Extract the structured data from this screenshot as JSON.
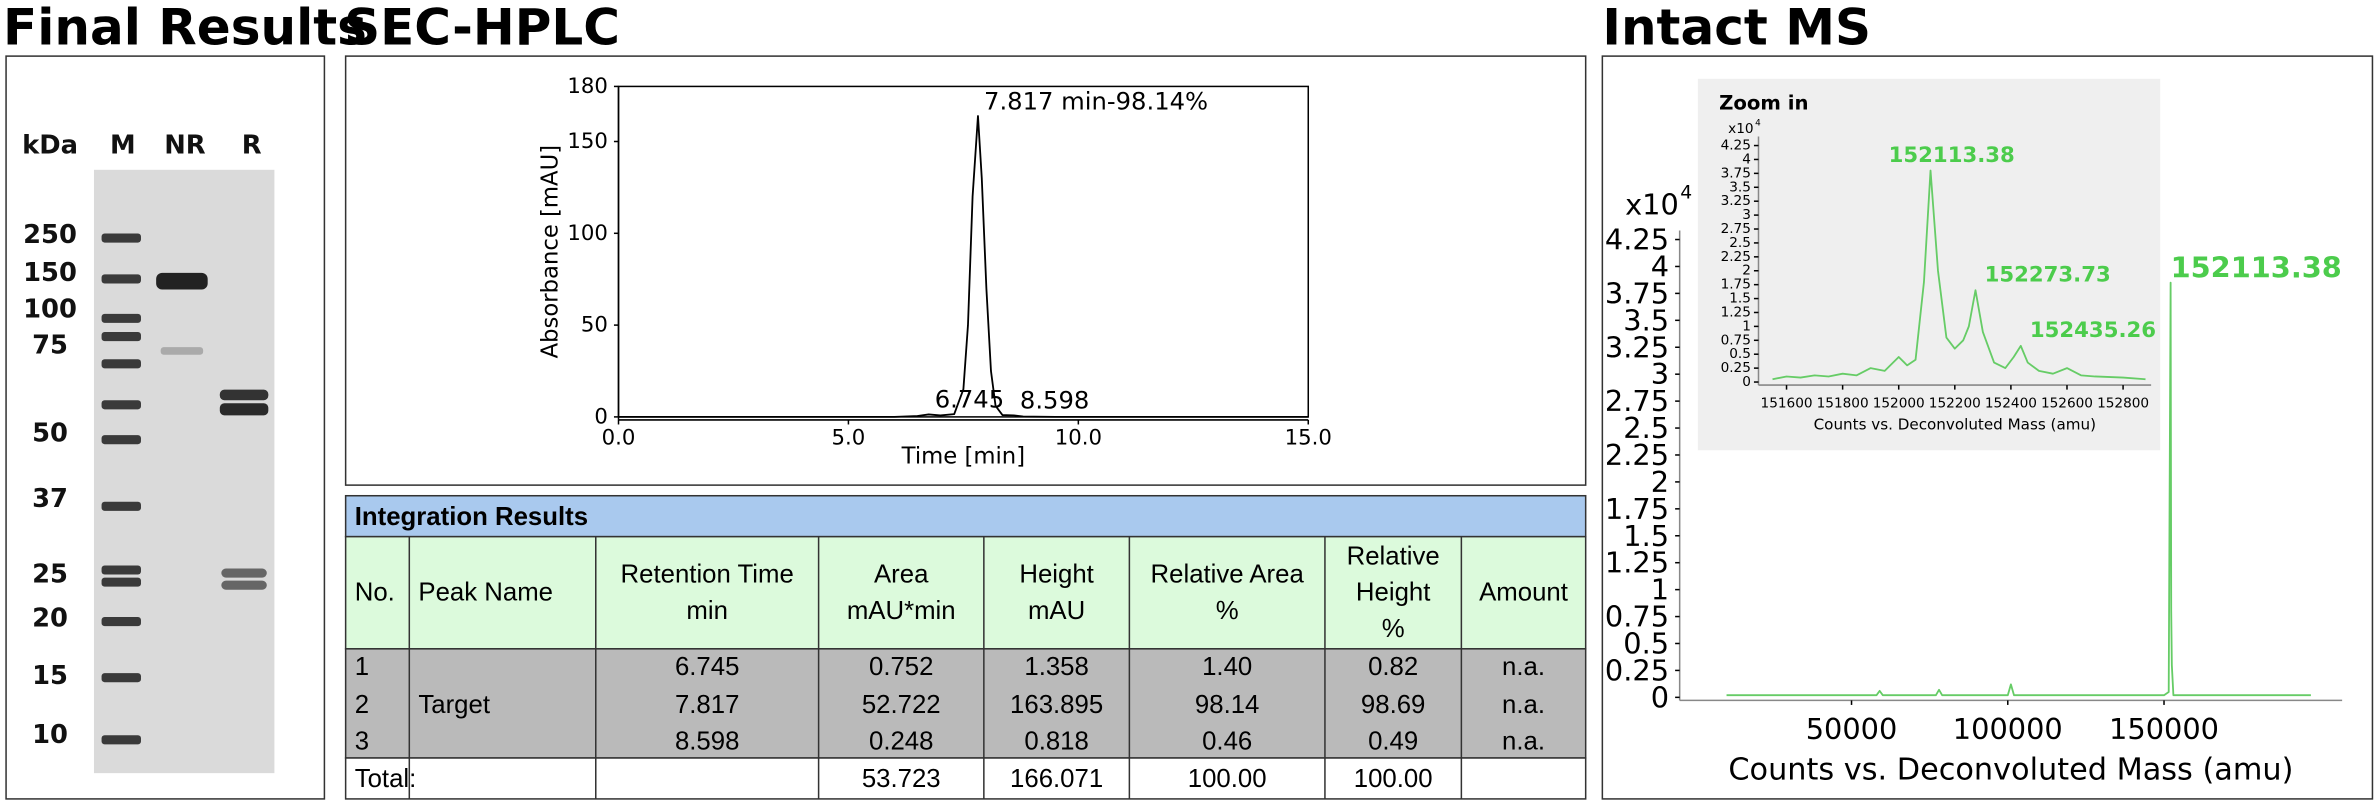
{
  "titles": {
    "gel": "Final Results",
    "sec": "SEC-HPLC",
    "ms": "Intact MS"
  },
  "gel": {
    "unit": "kDa",
    "lanes": [
      "M",
      "NR",
      "R"
    ],
    "markers": [
      250,
      150,
      100,
      75,
      50,
      37,
      25,
      20,
      15,
      10
    ]
  },
  "chart_data": [
    {
      "type": "line",
      "xlabel": "Time [min]",
      "ylabel": "Absorbance [mAU]",
      "xlim": [
        0,
        15
      ],
      "ylim": [
        0,
        180
      ],
      "xticks": [
        {
          "value": 0,
          "label": "0.0"
        },
        {
          "value": 5,
          "label": "5.0"
        },
        {
          "value": 10,
          "label": "10.0"
        },
        {
          "value": 15,
          "label": "15.0"
        }
      ],
      "yticks": [
        0,
        50,
        100,
        150,
        180
      ],
      "series": [
        {
          "color": "#000000",
          "x": [
            0,
            6.0,
            6.5,
            6.745,
            7.0,
            7.3,
            7.5,
            7.6,
            7.7,
            7.817,
            7.9,
            8.0,
            8.1,
            8.2,
            8.35,
            8.598,
            8.8,
            9.5,
            15
          ],
          "values": [
            0,
            0,
            0.5,
            1.358,
            0.8,
            1.5,
            15,
            50,
            120,
            163.895,
            130,
            70,
            25,
            6,
            1,
            0.818,
            0.2,
            0,
            0
          ]
        }
      ],
      "annotations": [
        {
          "text": "7.817 min-98.14%",
          "x": 7.817,
          "y": 163.895
        },
        {
          "text": "6.745",
          "x": 6.745,
          "y": 1.358
        },
        {
          "text": "8.598",
          "x": 8.598,
          "y": 0.818
        }
      ]
    },
    {
      "type": "line",
      "xlabel": "Counts vs. Deconvoluted Mass (amu)",
      "y_scale": {
        "base": "x10",
        "exponent": "4"
      },
      "xlim": [
        -5000,
        207000
      ],
      "ylim": [
        0,
        4.25
      ],
      "xticks": [
        50000,
        100000,
        150000
      ],
      "yticks": [
        0,
        0.25,
        0.5,
        0.75,
        1,
        1.25,
        1.5,
        1.75,
        2,
        2.25,
        2.5,
        2.75,
        3,
        3.25,
        3.5,
        3.75,
        4,
        4.25
      ],
      "series": [
        {
          "color": "#66cc66",
          "x": [
            10000,
            58000,
            59000,
            60000,
            77000,
            78000,
            79000,
            100000,
            101000,
            102000,
            150000,
            151500,
            152113.38,
            152300,
            152500,
            153000,
            197000
          ],
          "values": [
            0.02,
            0.02,
            0.06,
            0.02,
            0.02,
            0.07,
            0.02,
            0.02,
            0.12,
            0.02,
            0.02,
            0.05,
            3.85,
            0.8,
            0.3,
            0.02,
            0.02
          ]
        }
      ],
      "annotations": [
        {
          "text": "152113.38",
          "x": 152113.38,
          "y": 3.85
        }
      ]
    },
    {
      "type": "line",
      "title": "Zoom in",
      "xlabel": "Counts vs. Deconvoluted Mass (amu)",
      "y_scale": {
        "base": "x10",
        "exponent": "4"
      },
      "xlim": [
        151500,
        152900
      ],
      "ylim": [
        0,
        4.25
      ],
      "xticks": [
        151600,
        151800,
        152000,
        152200,
        152400,
        152600,
        152800
      ],
      "yticks": [
        0,
        0.25,
        0.5,
        0.75,
        1,
        1.25,
        1.5,
        1.75,
        2,
        2.25,
        2.5,
        2.75,
        3,
        3.25,
        3.5,
        3.75,
        4,
        4.25
      ],
      "series": [
        {
          "color": "#66cc66",
          "x": [
            151550,
            151600,
            151650,
            151700,
            151750,
            151800,
            151850,
            151900,
            151950,
            152000,
            152030,
            152060,
            152090,
            152113.38,
            152140,
            152170,
            152200,
            152230,
            152250,
            152273.73,
            152300,
            152340,
            152380,
            152410,
            152435.26,
            152460,
            152500,
            152550,
            152600,
            152650,
            152700,
            152800,
            152880
          ],
          "values": [
            0.05,
            0.1,
            0.08,
            0.12,
            0.1,
            0.15,
            0.12,
            0.25,
            0.2,
            0.45,
            0.3,
            0.4,
            1.8,
            3.8,
            2.0,
            0.8,
            0.6,
            0.75,
            1.0,
            1.65,
            0.9,
            0.35,
            0.25,
            0.45,
            0.65,
            0.35,
            0.2,
            0.15,
            0.25,
            0.12,
            0.1,
            0.08,
            0.05
          ]
        }
      ],
      "annotations": [
        {
          "text": "152113.38",
          "x": 152113.38,
          "y": 3.8
        },
        {
          "text": "152273.73",
          "x": 152273.73,
          "y": 1.65
        },
        {
          "text": "152435.26",
          "x": 152435.26,
          "y": 0.65
        }
      ]
    }
  ],
  "table": {
    "title": "Integration Results",
    "columns": [
      [
        "No."
      ],
      [
        "Peak Name"
      ],
      [
        "Retention Time",
        "min"
      ],
      [
        "Area",
        "mAU*min"
      ],
      [
        "Height",
        "mAU"
      ],
      [
        "Relative Area",
        "%"
      ],
      [
        "Relative",
        "Height",
        "%"
      ],
      [
        "Amount"
      ]
    ],
    "rows": [
      [
        "1",
        null,
        "6.745",
        "0.752",
        "1.358",
        "1.40",
        "0.82",
        "n.a."
      ],
      [
        "2",
        "Target",
        "7.817",
        "52.722",
        "163.895",
        "98.14",
        "98.69",
        "n.a."
      ],
      [
        "3",
        null,
        "8.598",
        "0.248",
        "0.818",
        "0.46",
        "0.49",
        "n.a."
      ]
    ],
    "total": [
      "Total:",
      null,
      null,
      "53.723",
      "166.071",
      "100.00",
      "100.00",
      null
    ]
  }
}
